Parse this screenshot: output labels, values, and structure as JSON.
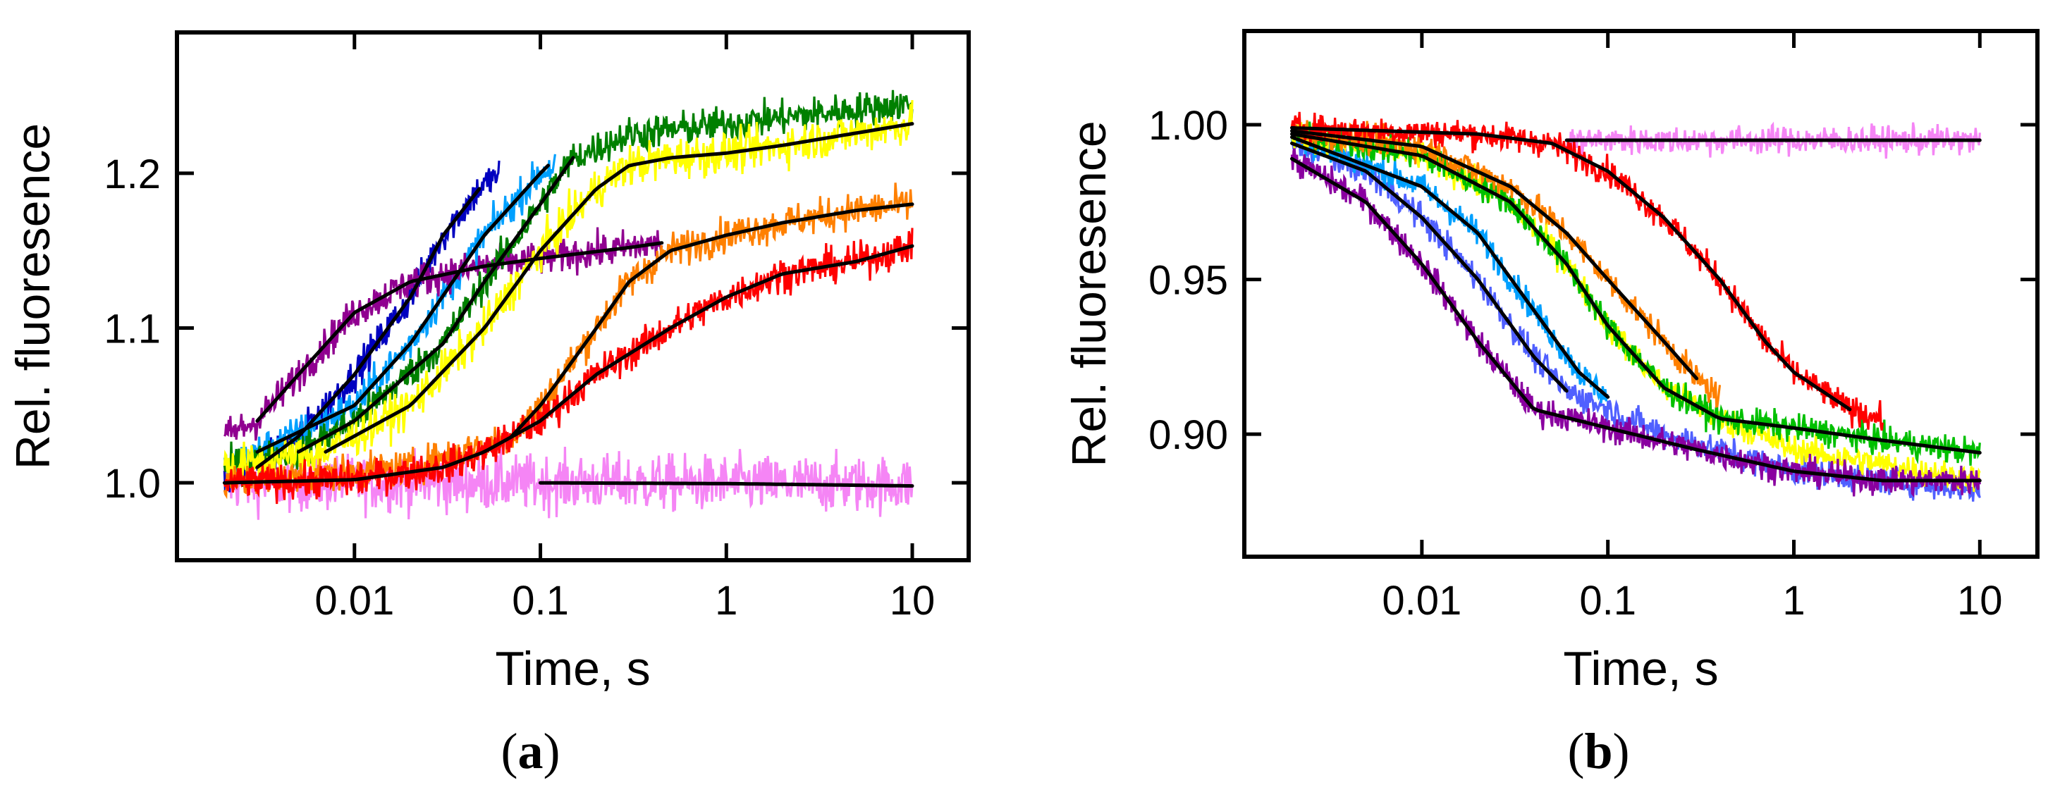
{
  "chart_data": [
    {
      "type": "line",
      "panel_label": "a",
      "xlabel": "Time, s",
      "ylabel": "Rel. fluoresence",
      "xscale": "log",
      "xlim": [
        0.00111,
        20.1
      ],
      "ylim": [
        0.95,
        1.291
      ],
      "xticks": [
        0.01,
        0.1,
        1,
        10
      ],
      "xtick_labels": [
        "0.01",
        "0.1",
        "1",
        "10"
      ],
      "yticks": [
        1.0,
        1.1,
        1.2
      ],
      "ytick_labels": [
        "1.0",
        "1.1",
        "1.2"
      ],
      "grid": false,
      "fit_color": "#000000",
      "series": [
        {
          "name": "pink",
          "color": "#f585f5",
          "noise": 0.018,
          "trace_x": [
            0.002,
            0.1,
            10
          ],
          "trace_y": [
            1.0,
            1.0,
            0.999
          ],
          "fit_x": [
            0.1,
            1,
            10
          ],
          "fit_y": [
            1.0,
            0.9995,
            0.998
          ]
        },
        {
          "name": "dark-blue",
          "color": "#0000c0",
          "noise": 0.011,
          "trace_x": [
            0.002,
            0.003,
            0.005,
            0.01,
            0.02,
            0.03,
            0.047,
            0.06
          ],
          "trace_y": [
            1.0,
            1.01,
            1.03,
            1.07,
            1.12,
            1.16,
            1.19,
            1.2
          ],
          "fit_x": [
            0.003,
            0.005,
            0.01,
            0.02,
            0.03,
            0.047
          ],
          "fit_y": [
            1.01,
            1.03,
            1.07,
            1.12,
            1.16,
            1.19
          ]
        },
        {
          "name": "light-blue",
          "color": "#00a0ff",
          "noise": 0.011,
          "trace_x": [
            0.002,
            0.003,
            0.01,
            0.02,
            0.05,
            0.1,
            0.12
          ],
          "trace_y": [
            1.01,
            1.02,
            1.05,
            1.09,
            1.16,
            1.2,
            1.205
          ],
          "fit_x": [
            0.003,
            0.01,
            0.02,
            0.05,
            0.1,
            0.11
          ],
          "fit_y": [
            1.02,
            1.05,
            1.09,
            1.16,
            1.2,
            1.205
          ]
        },
        {
          "name": "purple",
          "color": "#900090",
          "noise": 0.011,
          "trace_x": [
            0.002,
            0.003,
            0.005,
            0.01,
            0.02,
            0.05,
            0.1,
            0.3,
            0.45
          ],
          "trace_y": [
            1.03,
            1.04,
            1.07,
            1.11,
            1.13,
            1.14,
            1.145,
            1.152,
            1.155
          ],
          "fit_x": [
            0.003,
            0.005,
            0.01,
            0.02,
            0.05,
            0.1,
            0.3,
            0.45
          ],
          "fit_y": [
            1.04,
            1.07,
            1.11,
            1.13,
            1.14,
            1.145,
            1.152,
            1.155
          ]
        },
        {
          "name": "green",
          "color": "#008000",
          "noise": 0.011,
          "trace_x": [
            0.002,
            0.005,
            0.01,
            0.03,
            0.05,
            0.1,
            0.15,
            0.3,
            1,
            10
          ],
          "trace_y": [
            1.01,
            1.02,
            1.04,
            1.09,
            1.13,
            1.18,
            1.21,
            1.225,
            1.232,
            1.245
          ],
          "fit_x": [
            0.005,
            0.01,
            0.03,
            0.05,
            0.1,
            0.15
          ],
          "fit_y": [
            1.02,
            1.04,
            1.09,
            1.13,
            1.18,
            1.21
          ]
        },
        {
          "name": "yellow",
          "color": "#ffff00",
          "noise": 0.013,
          "trace_x": [
            0.002,
            0.007,
            0.02,
            0.05,
            0.1,
            0.2,
            0.3,
            0.5,
            1,
            2,
            5,
            10
          ],
          "trace_y": [
            1.01,
            1.02,
            1.05,
            1.1,
            1.15,
            1.19,
            1.205,
            1.21,
            1.213,
            1.218,
            1.226,
            1.232
          ],
          "fit_x": [
            0.007,
            0.02,
            0.05,
            0.1,
            0.2,
            0.3,
            0.5,
            1,
            2,
            5,
            10
          ],
          "fit_y": [
            1.02,
            1.05,
            1.1,
            1.15,
            1.19,
            1.205,
            1.21,
            1.213,
            1.218,
            1.226,
            1.232
          ]
        },
        {
          "name": "orange",
          "color": "#ff8000",
          "noise": 0.011,
          "trace_x": [
            0.002,
            0.02,
            0.07,
            0.1,
            0.2,
            0.3,
            0.5,
            1,
            2,
            5,
            10
          ],
          "trace_y": [
            1.0,
            1.01,
            1.03,
            1.05,
            1.1,
            1.13,
            1.15,
            1.16,
            1.168,
            1.176,
            1.18
          ],
          "fit_x": [
            0.07,
            0.1,
            0.2,
            0.3,
            0.5,
            1,
            2,
            5,
            10
          ],
          "fit_y": [
            1.03,
            1.05,
            1.1,
            1.13,
            1.15,
            1.16,
            1.168,
            1.176,
            1.18
          ]
        },
        {
          "name": "red",
          "color": "#ff0000",
          "noise": 0.011,
          "trace_x": [
            0.002,
            0.01,
            0.03,
            0.05,
            0.1,
            0.2,
            0.5,
            1,
            2,
            5,
            10
          ],
          "trace_y": [
            1.0,
            1.002,
            1.01,
            1.02,
            1.04,
            1.07,
            1.1,
            1.12,
            1.135,
            1.143,
            1.153
          ],
          "fit_x": [
            0.002,
            0.01,
            0.03,
            0.05,
            0.1,
            0.2,
            0.5,
            1,
            2,
            5,
            10
          ],
          "fit_y": [
            1.0,
            1.002,
            1.01,
            1.02,
            1.04,
            1.07,
            1.1,
            1.12,
            1.135,
            1.143,
            1.153
          ]
        }
      ]
    },
    {
      "type": "line",
      "panel_label": "b",
      "xlabel": "Time, s",
      "ylabel": "Rel. fluoresence",
      "xscale": "log",
      "xlim": [
        0.00111,
        20.4
      ],
      "ylim": [
        0.8604,
        1.0303
      ],
      "xticks": [
        0.01,
        0.1,
        1,
        10
      ],
      "xtick_labels": [
        "0.01",
        "0.1",
        "1",
        "10"
      ],
      "yticks": [
        0.9,
        0.95,
        1.0
      ],
      "ytick_labels": [
        "0.90",
        "0.95",
        "1.00"
      ],
      "grid": false,
      "fit_color": "#000000",
      "series": [
        {
          "name": "pink",
          "color": "#f585f5",
          "noise": 0.0045,
          "trace_x": [
            0.06,
            1,
            10
          ],
          "trace_y": [
            0.995,
            0.995,
            0.995
          ],
          "fit_x": [
            0.06,
            10
          ],
          "fit_y": [
            0.995,
            0.995
          ]
        },
        {
          "name": "blue",
          "color": "#5060ff",
          "noise": 0.0045,
          "trace_x": [
            0.002,
            0.005,
            0.01,
            0.02,
            0.04,
            0.06,
            0.2,
            1,
            10
          ],
          "trace_y": [
            0.994,
            0.985,
            0.97,
            0.95,
            0.925,
            0.914,
            0.9,
            0.888,
            0.882
          ],
          "fit_x": [
            0.002,
            0.005,
            0.01,
            0.02,
            0.04,
            0.06
          ],
          "fit_y": [
            0.994,
            0.985,
            0.97,
            0.95,
            0.925,
            0.914
          ]
        },
        {
          "name": "light-blue",
          "color": "#00a0ff",
          "noise": 0.0045,
          "trace_x": [
            0.002,
            0.01,
            0.02,
            0.04,
            0.07,
            0.1
          ],
          "trace_y": [
            0.996,
            0.98,
            0.965,
            0.94,
            0.92,
            0.912
          ],
          "fit_x": [
            0.002,
            0.01,
            0.02,
            0.04,
            0.07,
            0.1
          ],
          "fit_y": [
            0.996,
            0.98,
            0.965,
            0.94,
            0.92,
            0.912
          ]
        },
        {
          "name": "yellow",
          "color": "#ffff00",
          "noise": 0.0045,
          "trace_x": [
            0.002,
            0.01,
            0.03,
            0.06,
            0.1,
            0.2,
            0.4,
            1,
            10
          ],
          "trace_y": [
            0.997,
            0.99,
            0.975,
            0.955,
            0.935,
            0.915,
            0.905,
            0.895,
            0.885
          ],
          "fit_x": [],
          "fit_y": []
        },
        {
          "name": "green",
          "color": "#00c000",
          "noise": 0.0045,
          "trace_x": [
            0.002,
            0.01,
            0.03,
            0.06,
            0.1,
            0.2,
            0.4,
            1,
            3,
            10
          ],
          "trace_y": [
            0.997,
            0.99,
            0.975,
            0.955,
            0.935,
            0.915,
            0.905,
            0.902,
            0.898,
            0.894
          ],
          "fit_x": [
            0.002,
            0.01,
            0.03,
            0.06,
            0.1,
            0.2,
            0.4,
            1,
            3,
            10
          ],
          "fit_y": [
            0.997,
            0.99,
            0.975,
            0.955,
            0.935,
            0.915,
            0.905,
            0.902,
            0.898,
            0.894
          ]
        },
        {
          "name": "orange",
          "color": "#ff8000",
          "noise": 0.0045,
          "trace_x": [
            0.002,
            0.01,
            0.03,
            0.06,
            0.1,
            0.2,
            0.3,
            0.4
          ],
          "trace_y": [
            0.998,
            0.993,
            0.98,
            0.965,
            0.95,
            0.93,
            0.918,
            0.912
          ],
          "fit_x": [
            0.002,
            0.01,
            0.03,
            0.06,
            0.1,
            0.2,
            0.3
          ],
          "fit_y": [
            0.998,
            0.993,
            0.98,
            0.965,
            0.95,
            0.93,
            0.918
          ]
        },
        {
          "name": "red",
          "color": "#ff0000",
          "noise": 0.0045,
          "trace_x": [
            0.002,
            0.02,
            0.05,
            0.1,
            0.2,
            0.4,
            0.7,
            1,
            2,
            3
          ],
          "trace_y": [
            0.999,
            0.997,
            0.994,
            0.985,
            0.97,
            0.95,
            0.93,
            0.92,
            0.908,
            0.905
          ],
          "fit_x": [
            0.002,
            0.02,
            0.05,
            0.1,
            0.2,
            0.4,
            0.7,
            1,
            2
          ],
          "fit_y": [
            0.999,
            0.997,
            0.994,
            0.985,
            0.97,
            0.95,
            0.93,
            0.92,
            0.908
          ]
        },
        {
          "name": "purple",
          "color": "#8a00a0",
          "noise": 0.0045,
          "trace_x": [
            0.002,
            0.005,
            0.01,
            0.02,
            0.04,
            0.1,
            0.3,
            1,
            3,
            10
          ],
          "trace_y": [
            0.989,
            0.975,
            0.955,
            0.93,
            0.908,
            0.902,
            0.895,
            0.888,
            0.885,
            0.885
          ],
          "fit_x": [
            0.002,
            0.005,
            0.01,
            0.02,
            0.04,
            0.1,
            0.3,
            1,
            3,
            10
          ],
          "fit_y": [
            0.989,
            0.975,
            0.955,
            0.93,
            0.908,
            0.902,
            0.895,
            0.888,
            0.885,
            0.885
          ]
        }
      ]
    }
  ]
}
